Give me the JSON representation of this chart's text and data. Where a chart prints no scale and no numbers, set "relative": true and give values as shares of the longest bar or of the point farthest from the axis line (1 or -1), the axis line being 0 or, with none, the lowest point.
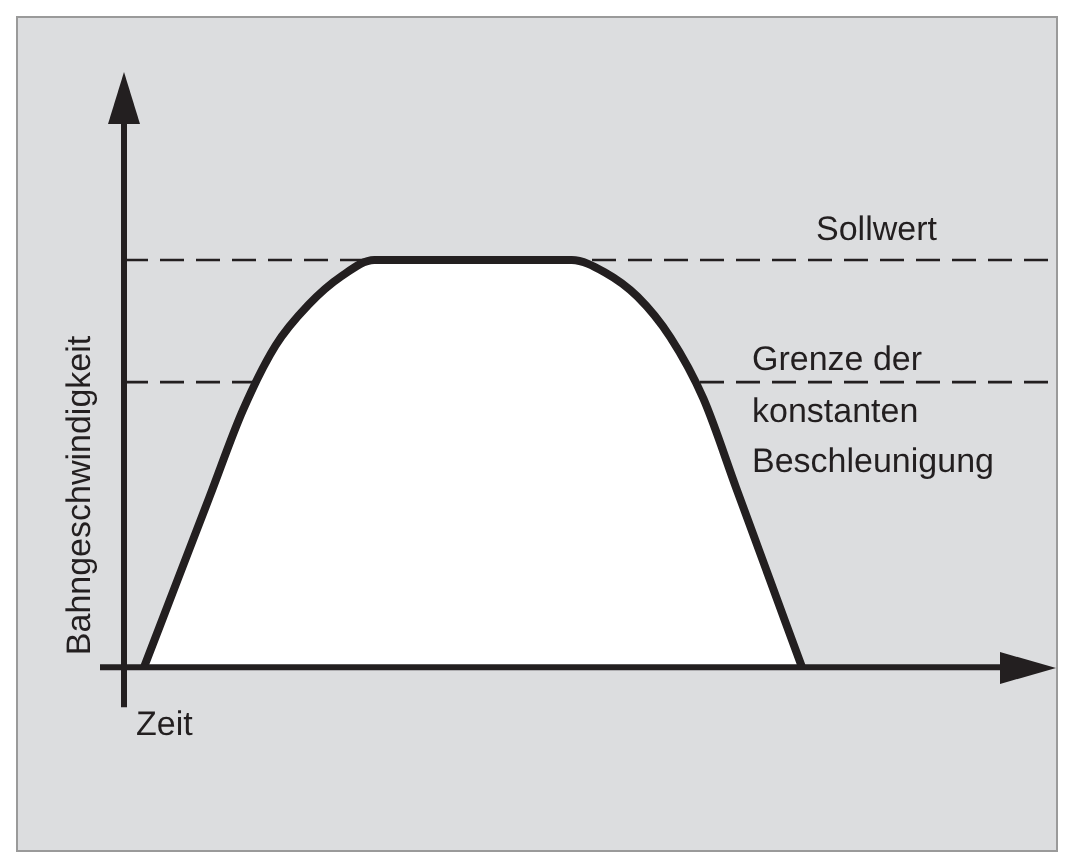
{
  "chart_data": {
    "type": "area",
    "relative": true,
    "xlabel": "Zeit",
    "ylabel": "Bahngeschwindigkeit",
    "categories": [
      null,
      null,
      null,
      null,
      null,
      null,
      null,
      null,
      null,
      null,
      null,
      null,
      null,
      null,
      null,
      null,
      null,
      null,
      null,
      null,
      null
    ],
    "series": [
      {
        "color": "#231f20",
        "values": [
          0,
          0.21,
          0.42,
          0.63,
          0.79,
          0.89,
          0.96,
          1,
          1,
          1,
          1,
          1,
          1,
          1,
          0.97,
          0.91,
          0.81,
          0.66,
          0.44,
          0.22,
          0
        ]
      }
    ],
    "ref_lines": [
      {
        "axis": "y",
        "value": 1,
        "label": "Sollwert",
        "color": "#231f20",
        "line_style": "dashed"
      },
      {
        "axis": "y",
        "value": 0.7,
        "label": "Grenze der\nkonstanten\nBeschleunigung",
        "color": "#231f20",
        "line_style": "dashed"
      }
    ],
    "legend": false
  }
}
